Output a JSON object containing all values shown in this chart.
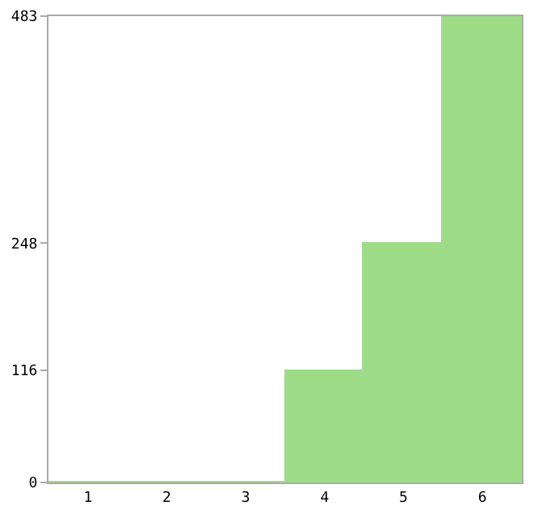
{
  "chart_data": {
    "type": "bar",
    "categories": [
      "1",
      "2",
      "3",
      "4",
      "5",
      "6"
    ],
    "values": [
      0,
      0,
      0,
      116,
      248,
      483
    ],
    "color": "#9edc88",
    "ylim": [
      0,
      483
    ],
    "yticks": [
      0,
      116,
      248,
      483
    ],
    "grid": false
  }
}
